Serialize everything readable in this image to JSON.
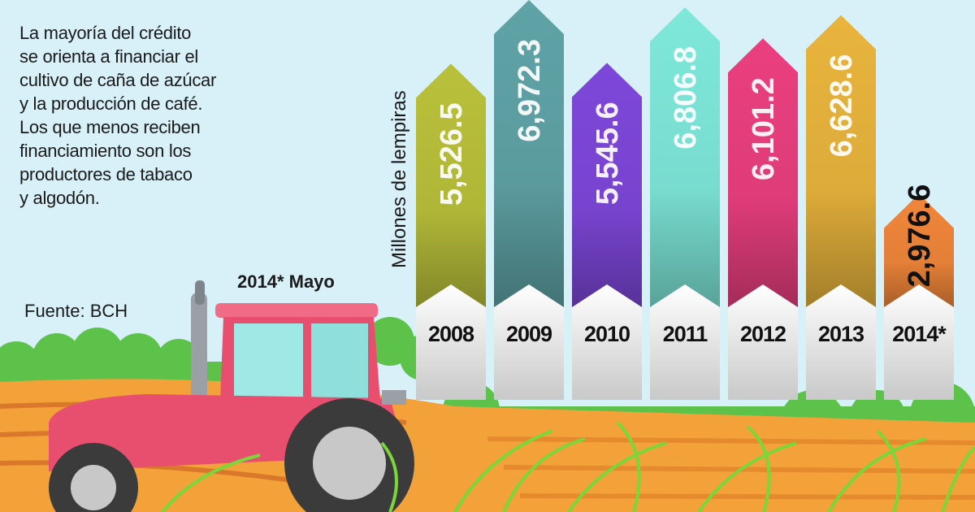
{
  "description_lines": [
    "La mayoría del crédito",
    "se orienta a financiar el",
    "cultivo de caña de azúcar",
    "y la producción de café.",
    "Los que menos reciben",
    "financiamiento son los",
    "productores de tabaco",
    "y algodón."
  ],
  "source": "Fuente: BCH",
  "footnote": "2014* Mayo",
  "chart_data": {
    "type": "bar",
    "orientation": "vertical",
    "ylabel": "Millones de lempiras",
    "categories": [
      "2008",
      "2009",
      "2010",
      "2011",
      "2012",
      "2013",
      "2014*"
    ],
    "values": [
      5526.5,
      6972.3,
      5545.6,
      6806.8,
      6101.2,
      6628.6,
      2976.6
    ],
    "value_labels": [
      "5,526.5",
      "6,972.3",
      "5,545.6",
      "6,806.8",
      "6,101.2",
      "6,628.6",
      "2,976.6"
    ],
    "colors": [
      "#b9c03a",
      "#5fa3a6",
      "#7d47d9",
      "#7ee8da",
      "#ea3f7f",
      "#e8b43c",
      "#f0863a"
    ],
    "grid": false,
    "legend": "none"
  }
}
